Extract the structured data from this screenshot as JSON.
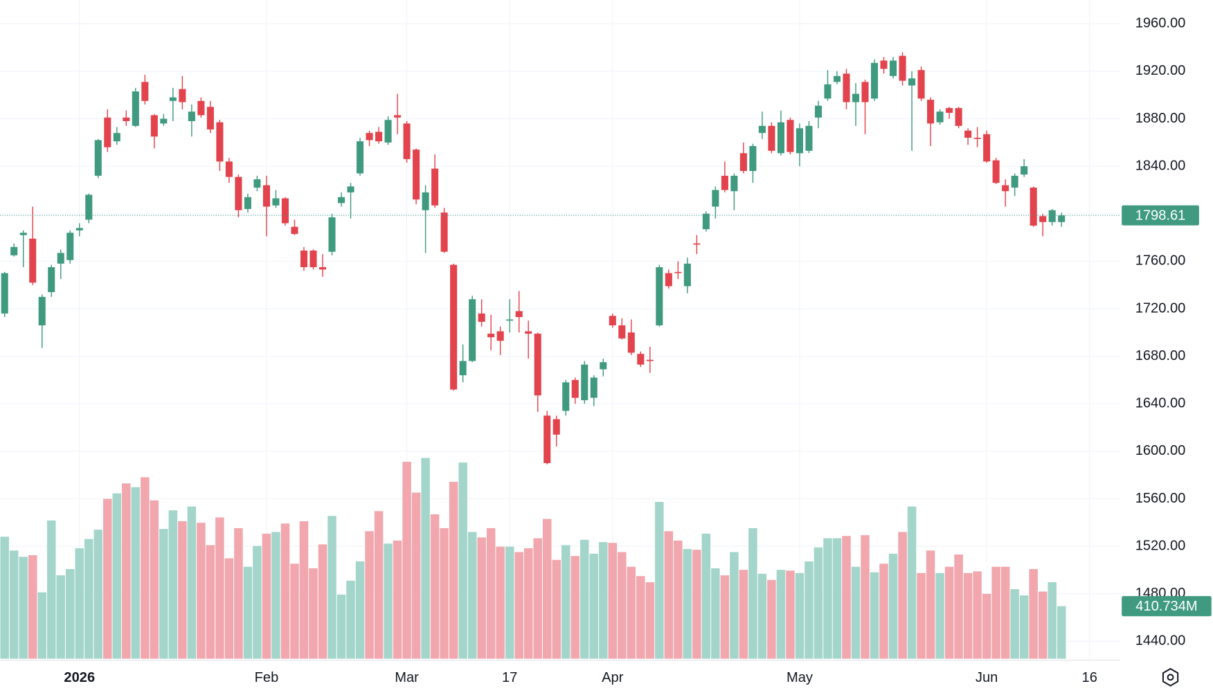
{
  "chart_data": {
    "type": "candlestick",
    "categories": [
      null,
      null,
      null,
      null,
      null,
      null,
      null,
      null,
      "2026",
      null,
      null,
      null,
      null,
      null,
      null,
      null,
      null,
      null,
      null,
      null,
      null,
      null,
      null,
      null,
      null,
      null,
      null,
      null,
      "Feb",
      null,
      null,
      null,
      null,
      null,
      null,
      null,
      null,
      null,
      null,
      null,
      null,
      null,
      null,
      "Mar",
      null,
      null,
      null,
      null,
      null,
      null,
      null,
      null,
      null,
      null,
      "17",
      null,
      null,
      null,
      null,
      null,
      null,
      null,
      null,
      null,
      null,
      "Apr",
      null,
      null,
      null,
      null,
      null,
      null,
      null,
      null,
      null,
      null,
      null,
      null,
      null,
      null,
      null,
      null,
      null,
      null,
      null,
      "May",
      null,
      null,
      null,
      null,
      null,
      null,
      null,
      null,
      null,
      null,
      null,
      null,
      null,
      null,
      null,
      null,
      null,
      null,
      null,
      "Jun",
      null,
      null,
      null,
      null,
      null,
      null,
      null,
      null,
      null,
      null,
      "16"
    ],
    "open": [
      1716,
      1765,
      1782,
      1779,
      1706,
      1734,
      1758,
      1761,
      1786,
      1795,
      1832,
      1881,
      1861,
      1881,
      1874,
      1911,
      1883,
      1876,
      1895,
      1905,
      1878,
      1895,
      1890,
      1877,
      1844,
      1831,
      1804,
      1822,
      1824,
      1807,
      1813,
      1789,
      1769,
      1769,
      1755,
      1768,
      1809,
      1818,
      1834,
      1868,
      1869,
      1860,
      1883,
      1876,
      1854,
      1803,
      1838,
      1801,
      1757,
      1664,
      1676,
      1716,
      1699,
      1701,
      1710,
      1718,
      1701,
      1699,
      1630,
      1627,
      1634,
      1660,
      1643,
      1645,
      1669,
      1714,
      1706,
      1700,
      1682,
      1677,
      1706,
      1750,
      1751,
      1739,
      1775,
      1787,
      1806,
      1832,
      1819,
      1851,
      1836,
      1868,
      1874,
      1851,
      1879,
      1851,
      1853,
      1881,
      1897,
      1911,
      1918,
      1894,
      1911,
      1897,
      1929,
      1916,
      1933,
      1908,
      1921,
      1896,
      1877,
      1889,
      1889,
      1870,
      1864,
      1867,
      1845,
      1824,
      1822,
      1833,
      1822,
      1798,
      1793,
      1793,
      null,
      null,
      null
    ],
    "high": [
      1751,
      1775,
      1786,
      1806,
      1732,
      1757,
      1770,
      1786,
      1792,
      1817,
      1863,
      1888,
      1873,
      1887,
      1906,
      1917,
      1884,
      1884,
      1906,
      1916,
      1892,
      1898,
      1895,
      1879,
      1847,
      1833,
      1817,
      1832,
      1832,
      1820,
      1814,
      1795,
      1772,
      1770,
      1766,
      1800,
      1818,
      1826,
      1864,
      1870,
      1873,
      1882,
      1901,
      1878,
      1855,
      1824,
      1850,
      1805,
      1758,
      1690,
      1731,
      1728,
      1715,
      1705,
      1728,
      1735,
      1710,
      1700,
      1634,
      1630,
      1660,
      1662,
      1676,
      1664,
      1678,
      1716,
      1712,
      1711,
      1684,
      1688,
      1757,
      1753,
      1760,
      1763,
      1782,
      1802,
      1823,
      1844,
      1834,
      1860,
      1859,
      1886,
      1877,
      1887,
      1881,
      1876,
      1878,
      1895,
      1921,
      1920,
      1922,
      1910,
      1913,
      1930,
      1932,
      1932,
      1936,
      1920,
      1924,
      1898,
      1888,
      1890,
      1890,
      1872,
      1873,
      1870,
      1847,
      1829,
      1834,
      1846,
      1823,
      1800,
      1804,
      1801,
      null,
      null,
      null
    ],
    "low": [
      1713,
      1764,
      1755,
      1740,
      1687,
      1730,
      1745,
      1758,
      1781,
      1792,
      1830,
      1852,
      1858,
      1874,
      1873,
      1892,
      1855,
      1874,
      1878,
      1888,
      1865,
      1881,
      1868,
      1836,
      1826,
      1797,
      1801,
      1819,
      1781,
      1805,
      1790,
      1782,
      1752,
      1753,
      1747,
      1765,
      1806,
      1796,
      1832,
      1857,
      1859,
      1858,
      1867,
      1843,
      1808,
      1767,
      1805,
      1767,
      1651,
      1658,
      1675,
      1705,
      1685,
      1681,
      1700,
      1700,
      1678,
      1633,
      1589,
      1604,
      1630,
      1640,
      1640,
      1638,
      1663,
      1704,
      1694,
      1681,
      1671,
      1666,
      1705,
      1737,
      1745,
      1733,
      1766,
      1785,
      1796,
      1818,
      1803,
      1834,
      1826,
      1863,
      1851,
      1849,
      1850,
      1840,
      1851,
      1872,
      1895,
      1909,
      1888,
      1874,
      1867,
      1895,
      1918,
      1914,
      1908,
      1853,
      1895,
      1857,
      1875,
      1880,
      1872,
      1858,
      1856,
      1843,
      1825,
      1806,
      1815,
      1831,
      1789,
      1781,
      1790,
      1789,
      null,
      null,
      null
    ],
    "close": [
      1750,
      1772,
      1784,
      1742,
      1730,
      1755,
      1767,
      1784,
      1788,
      1816,
      1862,
      1856,
      1868,
      1878,
      1903,
      1895,
      1865,
      1880,
      1898,
      1894,
      1886,
      1883,
      1871,
      1844,
      1831,
      1803,
      1814,
      1829,
      1806,
      1813,
      1792,
      1783,
      1755,
      1755,
      1753,
      1797,
      1814,
      1823,
      1861,
      1862,
      1861,
      1879,
      1881,
      1846,
      1812,
      1818,
      1807,
      1768,
      1652,
      1676,
      1728,
      1709,
      1696,
      1693,
      1711,
      1713,
      1699,
      1647,
      1590,
      1614,
      1658,
      1645,
      1673,
      1662,
      1675,
      1706,
      1695,
      1683,
      1673,
      1676,
      1755,
      1739,
      1750,
      1758,
      1774,
      1800,
      1820,
      1820,
      1832,
      1836,
      1857,
      1874,
      1853,
      1877,
      1852,
      1872,
      1874,
      1891,
      1909,
      1916,
      1894,
      1901,
      1894,
      1927,
      1922,
      1929,
      1912,
      1914,
      1897,
      1876,
      1886,
      1885,
      1874,
      1864,
      1863,
      1844,
      1826,
      1819,
      1832,
      1840,
      1790,
      1793,
      1803,
      1798.61,
      null,
      null,
      null
    ],
    "volume": [
      954,
      846,
      797,
      809,
      519,
      1081,
      652,
      701,
      864,
      936,
      1009,
      1250,
      1293,
      1371,
      1341,
      1419,
      1238,
      1015,
      1160,
      1075,
      1190,
      1063,
      888,
      1105,
      785,
      1021,
      719,
      882,
      978,
      991,
      1057,
      743,
      1075,
      707,
      894,
      1117,
      501,
      610,
      761,
      997,
      1154,
      900,
      924,
      1540,
      1299,
      1570,
      1129,
      1021,
      1383,
      1534,
      991,
      948,
      1021,
      876,
      876,
      834,
      864,
      942,
      1093,
      773,
      888,
      803,
      930,
      821,
      912,
      906,
      834,
      719,
      646,
      598,
      1226,
      997,
      924,
      858,
      852,
      978,
      707,
      652,
      834,
      695,
      1021,
      664,
      616,
      695,
      689,
      670,
      761,
      870,
      942,
      942,
      960,
      719,
      966,
      676,
      743,
      821,
      991,
      1190,
      670,
      846,
      670,
      719,
      815,
      670,
      683,
      507,
      719,
      719,
      544,
      495,
      701,
      525,
      598,
      410.734,
      null,
      null,
      null
    ],
    "volume_last_label": "410.734M",
    "up_color": "#3f9a80",
    "down_color": "#e2434d",
    "volume_up_color": "#a3d5cb",
    "volume_down_color": "#f1a7ad",
    "ylim": [
      1424,
      1980
    ],
    "yticks": [
      {
        "value": 1440,
        "label": "1440.00"
      },
      {
        "value": 1480,
        "label": "1480.00"
      },
      {
        "value": 1520,
        "label": "1520.00"
      },
      {
        "value": 1560,
        "label": "1560.00"
      },
      {
        "value": 1600,
        "label": "1600.00"
      },
      {
        "value": 1640,
        "label": "1640.00"
      },
      {
        "value": 1680,
        "label": "1680.00"
      },
      {
        "value": 1720,
        "label": "1720.00"
      },
      {
        "value": 1760,
        "label": "1760.00"
      },
      {
        "value": 1800,
        "label": "1800.00"
      },
      {
        "value": 1840,
        "label": "1840.00"
      },
      {
        "value": 1880,
        "label": "1880.00"
      },
      {
        "value": 1920,
        "label": "1920.00"
      },
      {
        "value": 1960,
        "label": "1960.00"
      }
    ],
    "grid": true
  }
}
